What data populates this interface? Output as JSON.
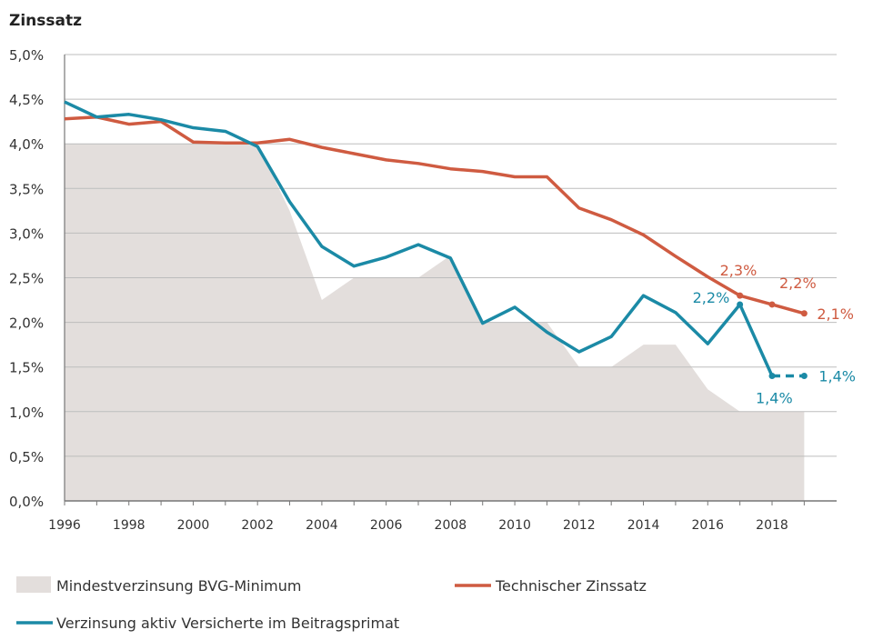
{
  "chart_data": {
    "type": "line",
    "title": "Zinssatz",
    "xlabel": "",
    "ylabel": "",
    "ylim": [
      0,
      5
    ],
    "y_ticks": [
      "0,0%",
      "0,5%",
      "1,0%",
      "1,5%",
      "2,0%",
      "2,5%",
      "3,0%",
      "3,5%",
      "4,0%",
      "4,5%",
      "5,0%"
    ],
    "x": [
      1996,
      1997,
      1998,
      1999,
      2000,
      2001,
      2002,
      2003,
      2004,
      2005,
      2006,
      2007,
      2008,
      2009,
      2010,
      2011,
      2012,
      2013,
      2014,
      2015,
      2016,
      2017,
      2018,
      2019
    ],
    "x_ticks": [
      "1996",
      "1998",
      "2000",
      "2002",
      "2004",
      "2006",
      "2008",
      "2010",
      "2012",
      "2014",
      "2016",
      "2018"
    ],
    "grid": true,
    "legend_position": "bottom",
    "series": [
      {
        "name": "Mindestverzinsung BVG-Minimum",
        "type": "area",
        "color": "#e3dedc",
        "values": [
          4.0,
          4.0,
          4.0,
          4.0,
          4.0,
          4.0,
          4.0,
          3.25,
          2.25,
          2.5,
          2.5,
          2.5,
          2.75,
          2.0,
          2.0,
          2.0,
          1.5,
          1.5,
          1.75,
          1.75,
          1.25,
          1.0,
          1.0,
          1.0
        ]
      },
      {
        "name": "Technischer Zinssatz",
        "type": "line",
        "color": "#cf5b41",
        "values": [
          4.28,
          4.3,
          4.22,
          4.25,
          4.02,
          4.01,
          4.01,
          4.05,
          3.96,
          3.89,
          3.82,
          3.78,
          3.72,
          3.69,
          3.63,
          3.63,
          3.28,
          3.15,
          2.98,
          2.74,
          2.51,
          2.3,
          2.2,
          2.1
        ]
      },
      {
        "name": "Verzinsung aktiv Versicherte im Beitragsprimat",
        "type": "line",
        "color": "#1b8aa6",
        "values": [
          4.47,
          4.3,
          4.33,
          4.27,
          4.18,
          4.14,
          3.97,
          3.35,
          2.85,
          2.63,
          2.73,
          2.87,
          2.72,
          1.99,
          2.17,
          1.89,
          1.67,
          1.84,
          2.3,
          2.11,
          1.76,
          2.2,
          1.4,
          1.4
        ],
        "dashed_from": 2018
      }
    ],
    "annotations": [
      {
        "series": 1,
        "x": 2017,
        "text": "2,3%"
      },
      {
        "series": 1,
        "x": 2018,
        "text": "2,2%"
      },
      {
        "series": 1,
        "x": 2019,
        "text": "2,1%"
      },
      {
        "series": 2,
        "x": 2017,
        "text": "2,2%"
      },
      {
        "series": 2,
        "x": 2018,
        "text": "1,4%"
      },
      {
        "series": 2,
        "x": 2019,
        "text": "1,4%"
      }
    ]
  }
}
